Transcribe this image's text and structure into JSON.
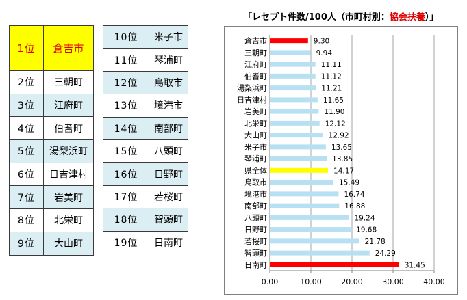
{
  "ranking_left": [
    {
      "rank": "1位",
      "name": "倉吉市"
    },
    {
      "rank": "2位",
      "name": "三朝町"
    },
    {
      "rank": "3位",
      "name": "江府町"
    },
    {
      "rank": "4位",
      "name": "伯耆町"
    },
    {
      "rank": "5位",
      "name": "湯梨浜町"
    },
    {
      "rank": "6位",
      "name": "日吉津村"
    },
    {
      "rank": "7位",
      "name": "岩美町"
    },
    {
      "rank": "8位",
      "name": "北栄町"
    },
    {
      "rank": "9位",
      "name": "大山町"
    }
  ],
  "ranking_right": [
    {
      "rank": "10位",
      "name": "米子市"
    },
    {
      "rank": "11位",
      "name": "琴浦町"
    },
    {
      "rank": "12位",
      "name": "鳥取市"
    },
    {
      "rank": "13位",
      "name": "境港市"
    },
    {
      "rank": "14位",
      "name": "南部町"
    },
    {
      "rank": "15位",
      "name": "八頭町"
    },
    {
      "rank": "16位",
      "name": "日野町"
    },
    {
      "rank": "17位",
      "name": "若桜町"
    },
    {
      "rank": "18位",
      "name": "智頭町"
    },
    {
      "rank": "19位",
      "name": "日南町"
    }
  ],
  "chart_data": {
    "type": "bar",
    "orientation": "horizontal",
    "title_main": "「レセプト件数/100人（市町村別：",
    "title_highlight": "協会扶養",
    "title_end": "）」",
    "categories": [
      "倉吉市",
      "三朝町",
      "江府町",
      "伯耆町",
      "湯梨浜町",
      "日吉津村",
      "岩美町",
      "北栄町",
      "大山町",
      "米子市",
      "琴浦町",
      "県全体",
      "鳥取市",
      "境港市",
      "南部町",
      "八頭町",
      "日野町",
      "若桜町",
      "智頭町",
      "日南町"
    ],
    "values": [
      9.3,
      9.94,
      11.11,
      11.12,
      11.21,
      11.65,
      11.9,
      12.12,
      12.92,
      13.65,
      13.85,
      14.17,
      15.49,
      16.74,
      16.88,
      19.24,
      19.68,
      21.78,
      24.29,
      31.45
    ],
    "value_labels": [
      "9.30",
      "9.94",
      "11.11",
      "11.12",
      "11.21",
      "11.65",
      "11.90",
      "12.12",
      "12.92",
      "13.65",
      "13.85",
      "14.17",
      "15.49",
      "16.74",
      "16.88",
      "19.24",
      "19.68",
      "21.78",
      "24.29",
      "31.45"
    ],
    "xlim": [
      0,
      40
    ],
    "x_ticks": [
      "0.00",
      "10.00",
      "20.00",
      "30.00",
      "40.00"
    ],
    "grid": true,
    "colors": {
      "default": "#b7e1f3",
      "extreme": "#ff0000",
      "average": "#ffff00",
      "grid": "#a6a6a6",
      "title_highlight": "#e00000"
    },
    "bar_colors": [
      "#ff0000",
      "#b7e1f3",
      "#b7e1f3",
      "#b7e1f3",
      "#b7e1f3",
      "#b7e1f3",
      "#b7e1f3",
      "#b7e1f3",
      "#b7e1f3",
      "#b7e1f3",
      "#b7e1f3",
      "#ffff00",
      "#b7e1f3",
      "#b7e1f3",
      "#b7e1f3",
      "#b7e1f3",
      "#b7e1f3",
      "#b7e1f3",
      "#b7e1f3",
      "#ff0000"
    ]
  }
}
